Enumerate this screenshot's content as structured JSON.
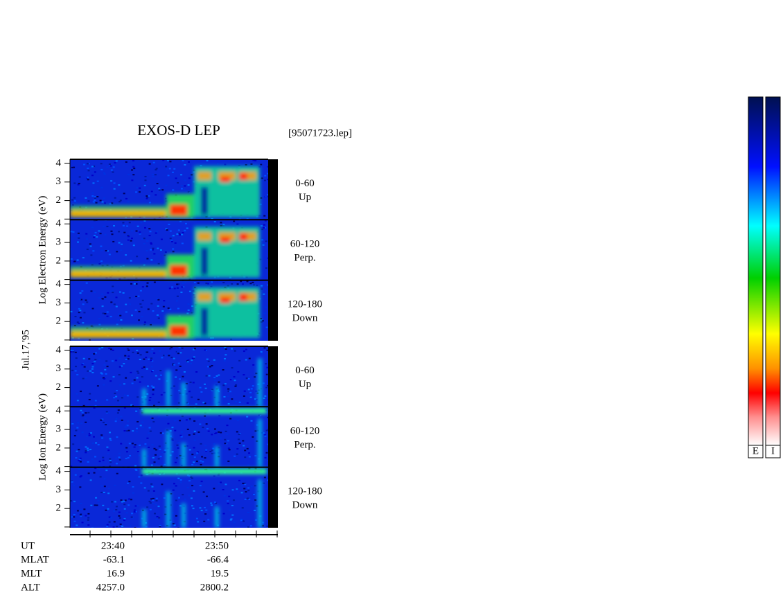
{
  "title": "EXOS-D LEP",
  "file": "[95071723.lep]",
  "date": "Jul.17,'95",
  "yticks": [
    2,
    3,
    4
  ],
  "groups": [
    {
      "ylabel": "Log  Electron  Energy (eV)",
      "panels": [
        {
          "angle": "0-60",
          "direction": "Up"
        },
        {
          "angle": "60-120",
          "direction": "Perp."
        },
        {
          "angle": "120-180",
          "direction": "Down"
        }
      ]
    },
    {
      "ylabel": "Log  Ion  Energy (eV)",
      "panels": [
        {
          "angle": "0-60",
          "direction": "Up"
        },
        {
          "angle": "60-120",
          "direction": "Perp."
        },
        {
          "angle": "120-180",
          "direction": "Down"
        }
      ]
    }
  ],
  "footer": [
    {
      "label": "UT",
      "values": [
        "23:40",
        "23:50"
      ]
    },
    {
      "label": "MLAT",
      "values": [
        "-63.1",
        "-66.4"
      ]
    },
    {
      "label": "MLT",
      "values": [
        "16.9",
        "19.5"
      ]
    },
    {
      "label": "ALT",
      "values": [
        "4257.0",
        "2800.2"
      ]
    }
  ],
  "colorbars": [
    "E",
    "I"
  ]
}
